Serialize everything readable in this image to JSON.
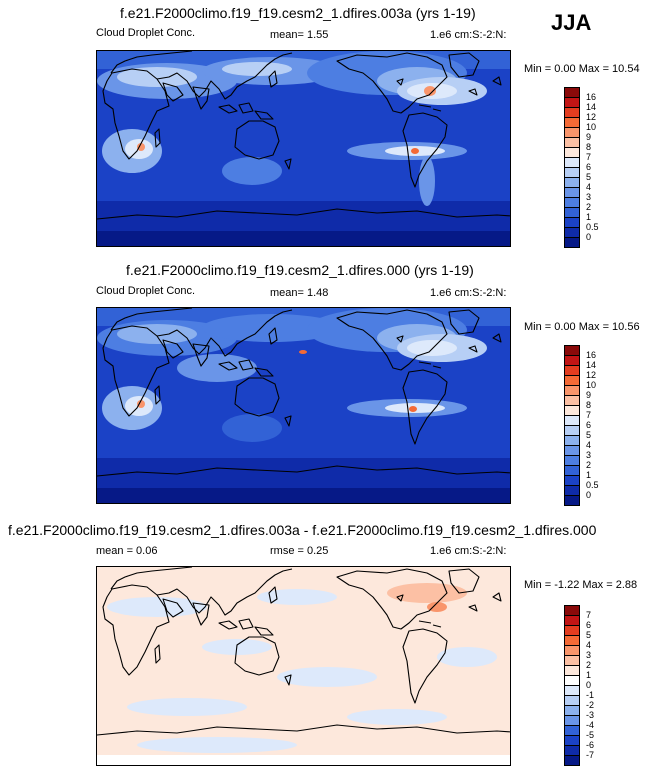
{
  "season": "JJA",
  "colors": {
    "abs_scale": [
      "#8a0a0a",
      "#c21515",
      "#e33d20",
      "#f46a36",
      "#f9956b",
      "#fcc0a4",
      "#fde8dc",
      "#dde9fb",
      "#b7cff5",
      "#8cb1ee",
      "#6a95e8",
      "#4d7ee2",
      "#3262d6",
      "#1b42c6",
      "#0f2ba9",
      "#061987"
    ],
    "diff_scale": [
      "#8a0a0a",
      "#c21515",
      "#e33d20",
      "#f46a36",
      "#f9956b",
      "#fcc0a4",
      "#fde8dc",
      "#ffffff",
      "#dde9fb",
      "#b7cff5",
      "#8cb1ee",
      "#6a95e8",
      "#3262d6",
      "#1b42c6",
      "#0f2ba9",
      "#061987"
    ]
  },
  "panels": [
    {
      "title": "f.e21.F2000climo.f19_f19.cesm2_1.dfires.003a (yrs 1-19)",
      "left_label": "Cloud Droplet Conc.",
      "center_label": "mean=  1.55",
      "right_label": "1.e6 cm:S:-2:N:",
      "minmax": "Min =   0.00 Max =  10.54",
      "colorbar_labels": [
        "16",
        "14",
        "12",
        "10",
        "9",
        "8",
        "7",
        "6",
        "5",
        "4",
        "3",
        "2",
        "1",
        "0.5",
        "0"
      ]
    },
    {
      "title": "f.e21.F2000climo.f19_f19.cesm2_1.dfires.000 (yrs 1-19)",
      "left_label": "Cloud Droplet Conc.",
      "center_label": "mean=  1.48",
      "right_label": "1.e6 cm:S:-2:N:",
      "minmax": "Min =   0.00 Max =  10.56",
      "colorbar_labels": [
        "16",
        "14",
        "12",
        "10",
        "9",
        "8",
        "7",
        "6",
        "5",
        "4",
        "3",
        "2",
        "1",
        "0.5",
        "0"
      ]
    },
    {
      "title": "f.e21.F2000climo.f19_f19.cesm2_1.dfires.003a - f.e21.F2000climo.f19_f19.cesm2_1.dfires.000",
      "left_label": "mean =  0.06",
      "center_label": "rmse =  0.25",
      "right_label": "1.e6 cm:S:-2:N:",
      "minmax": "Min =  -1.22 Max =   2.88",
      "colorbar_labels": [
        "7",
        "6",
        "5",
        "4",
        "3",
        "2",
        "1",
        "0",
        "-1",
        "-2",
        "-3",
        "-4",
        "-5",
        "-6",
        "-7"
      ]
    }
  ]
}
